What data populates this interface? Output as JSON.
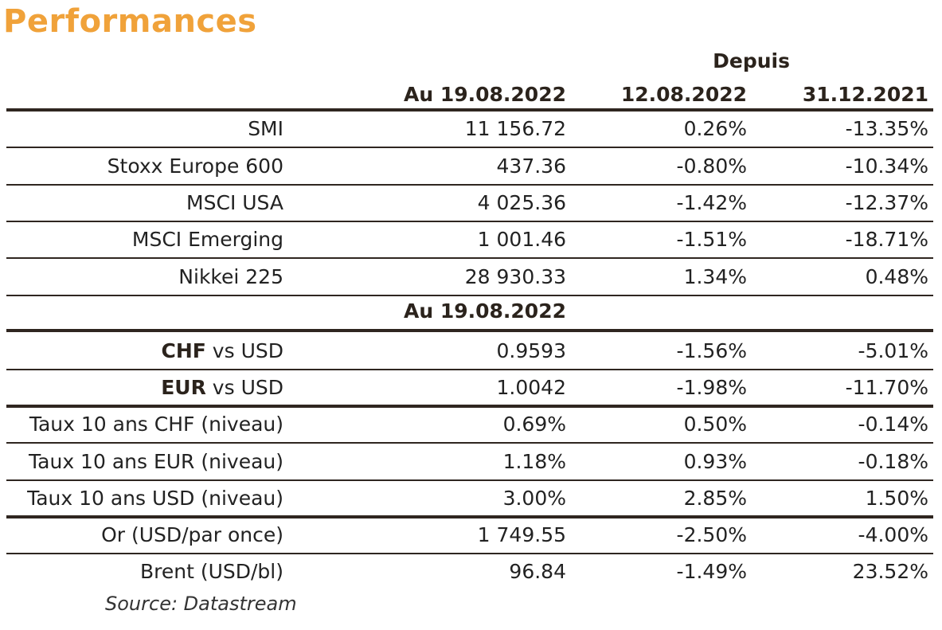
{
  "title": "Performances",
  "header": {
    "depuis": "Depuis",
    "col1": "Au 19.08.2022",
    "col2": "12.08.2022",
    "col3": "31.12.2021",
    "subheader": "Au 19.08.2022"
  },
  "rows": [
    {
      "label": "SMI",
      "v1": "11 156.72",
      "v2": "0.26%",
      "v3": "-13.35%"
    },
    {
      "label": "Stoxx Europe 600",
      "v1": "437.36",
      "v2": "-0.80%",
      "v3": "-10.34%"
    },
    {
      "label": "MSCI USA",
      "v1": "4 025.36",
      "v2": "-1.42%",
      "v3": "-12.37%"
    },
    {
      "label": "MSCI Emerging",
      "v1": "1 001.46",
      "v2": "-1.51%",
      "v3": "-18.71%"
    },
    {
      "label": "Nikkei 225",
      "v1": "28 930.33",
      "v2": "1.34%",
      "v3": "0.48%"
    },
    {
      "label_bold": "CHF",
      "label": " vs USD",
      "v1": "0.9593",
      "v2": "-1.56%",
      "v3": "-5.01%"
    },
    {
      "label_bold": "EUR",
      "label": " vs USD",
      "v1": "1.0042",
      "v2": "-1.98%",
      "v3": "-11.70%"
    },
    {
      "label": "Taux 10 ans CHF (niveau)",
      "v1": "0.69%",
      "v2": "0.50%",
      "v3": "-0.14%"
    },
    {
      "label": "Taux 10 ans EUR (niveau)",
      "v1": "1.18%",
      "v2": "0.93%",
      "v3": "-0.18%"
    },
    {
      "label": "Taux 10 ans USD (niveau)",
      "v1": "3.00%",
      "v2": "2.85%",
      "v3": "1.50%"
    },
    {
      "label": "Or (USD/par once)",
      "v1": "1 749.55",
      "v2": "-2.50%",
      "v3": "-4.00%"
    },
    {
      "label": "Brent (USD/bl)",
      "v1": "96.84",
      "v2": "-1.49%",
      "v3": "23.52%"
    }
  ],
  "source": "Source: Datastream",
  "colors": {
    "title": "#f0a23a",
    "rule": "#2f2620"
  }
}
